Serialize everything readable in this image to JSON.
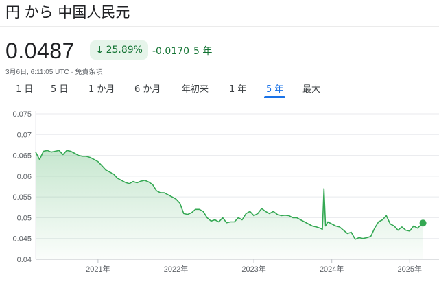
{
  "header": {
    "title": "円 から 中国人民元",
    "price": "0.0487",
    "percent_change": "25.89%",
    "change_value": "-0.0170",
    "change_period": "5 年",
    "timestamp": "3月6日, 6:11:05 UTC · 免責条項",
    "accent_color": "#137333",
    "badge_bg": "#e6f4ea"
  },
  "ranges": [
    {
      "label": "1 日",
      "active": false
    },
    {
      "label": "5 日",
      "active": false
    },
    {
      "label": "1 か月",
      "active": false
    },
    {
      "label": "6 か月",
      "active": false
    },
    {
      "label": "年初来",
      "active": false
    },
    {
      "label": "1 年",
      "active": false
    },
    {
      "label": "5 年",
      "active": true
    },
    {
      "label": "最大",
      "active": false
    }
  ],
  "chart_data": {
    "type": "area",
    "title": "",
    "xlabel": "",
    "ylabel": "",
    "ylim": [
      0.04,
      0.075
    ],
    "yticks": [
      "0.075",
      "0.07",
      "0.065",
      "0.06",
      "0.055",
      "0.05",
      "0.045",
      "0.04"
    ],
    "xlim": [
      2020.2,
      2025.2
    ],
    "xticks": [
      {
        "label": "2021年",
        "x": 2021.0
      },
      {
        "label": "2022年",
        "x": 2022.0
      },
      {
        "label": "2023年",
        "x": 2023.0
      },
      {
        "label": "2024年",
        "x": 2024.0
      },
      {
        "label": "2025年",
        "x": 2025.0
      }
    ],
    "grid": true,
    "line_color": "#34a853",
    "series": [
      {
        "x": [
          2020.2,
          2020.25,
          2020.3,
          2020.35,
          2020.4,
          2020.45,
          2020.5,
          2020.55,
          2020.6,
          2020.65,
          2020.7,
          2020.75,
          2020.8,
          2020.85,
          2020.9,
          2020.95,
          2021.0,
          2021.05,
          2021.1,
          2021.15,
          2021.2,
          2021.25,
          2021.3,
          2021.35,
          2021.4,
          2021.45,
          2021.5,
          2021.55,
          2021.6,
          2021.65,
          2021.7,
          2021.75,
          2021.8,
          2021.85,
          2021.9,
          2021.95,
          2022.0,
          2022.05,
          2022.1,
          2022.15,
          2022.2,
          2022.25,
          2022.3,
          2022.35,
          2022.4,
          2022.45,
          2022.5,
          2022.55,
          2022.6,
          2022.65,
          2022.7,
          2022.75,
          2022.8,
          2022.85,
          2022.9,
          2022.95,
          2023.0,
          2023.05,
          2023.1,
          2023.15,
          2023.2,
          2023.25,
          2023.3,
          2023.35,
          2023.4,
          2023.45,
          2023.5,
          2023.55,
          2023.6,
          2023.65,
          2023.7,
          2023.75,
          2023.8,
          2023.85,
          2023.88,
          2023.9,
          2023.92,
          2023.95,
          2024.0,
          2024.05,
          2024.1,
          2024.15,
          2024.2,
          2024.25,
          2024.3,
          2024.35,
          2024.4,
          2024.45,
          2024.5,
          2024.55,
          2024.6,
          2024.65,
          2024.7,
          2024.75,
          2024.8,
          2024.85,
          2024.9,
          2024.95,
          2025.0,
          2025.05,
          2025.1,
          2025.17
        ],
        "values": [
          0.0658,
          0.064,
          0.066,
          0.0662,
          0.0658,
          0.066,
          0.0662,
          0.0652,
          0.0662,
          0.066,
          0.0655,
          0.065,
          0.0648,
          0.0648,
          0.0645,
          0.064,
          0.0635,
          0.0625,
          0.0615,
          0.061,
          0.0605,
          0.0595,
          0.059,
          0.0585,
          0.0582,
          0.0587,
          0.0584,
          0.0588,
          0.059,
          0.0586,
          0.058,
          0.0565,
          0.056,
          0.056,
          0.0555,
          0.055,
          0.0545,
          0.0535,
          0.051,
          0.0508,
          0.0512,
          0.052,
          0.052,
          0.0515,
          0.05,
          0.0492,
          0.0495,
          0.049,
          0.05,
          0.0488,
          0.049,
          0.049,
          0.05,
          0.0495,
          0.051,
          0.0515,
          0.0505,
          0.051,
          0.0522,
          0.0515,
          0.051,
          0.0515,
          0.0508,
          0.0505,
          0.0506,
          0.0505,
          0.05,
          0.05,
          0.0495,
          0.049,
          0.0485,
          0.048,
          0.0478,
          0.0475,
          0.0472,
          0.057,
          0.048,
          0.049,
          0.0485,
          0.048,
          0.0478,
          0.047,
          0.0462,
          0.0465,
          0.0448,
          0.0452,
          0.045,
          0.0452,
          0.0455,
          0.0475,
          0.049,
          0.0495,
          0.0505,
          0.0485,
          0.048,
          0.047,
          0.0478,
          0.047,
          0.0468,
          0.048,
          0.0475,
          0.0487
        ]
      }
    ]
  }
}
